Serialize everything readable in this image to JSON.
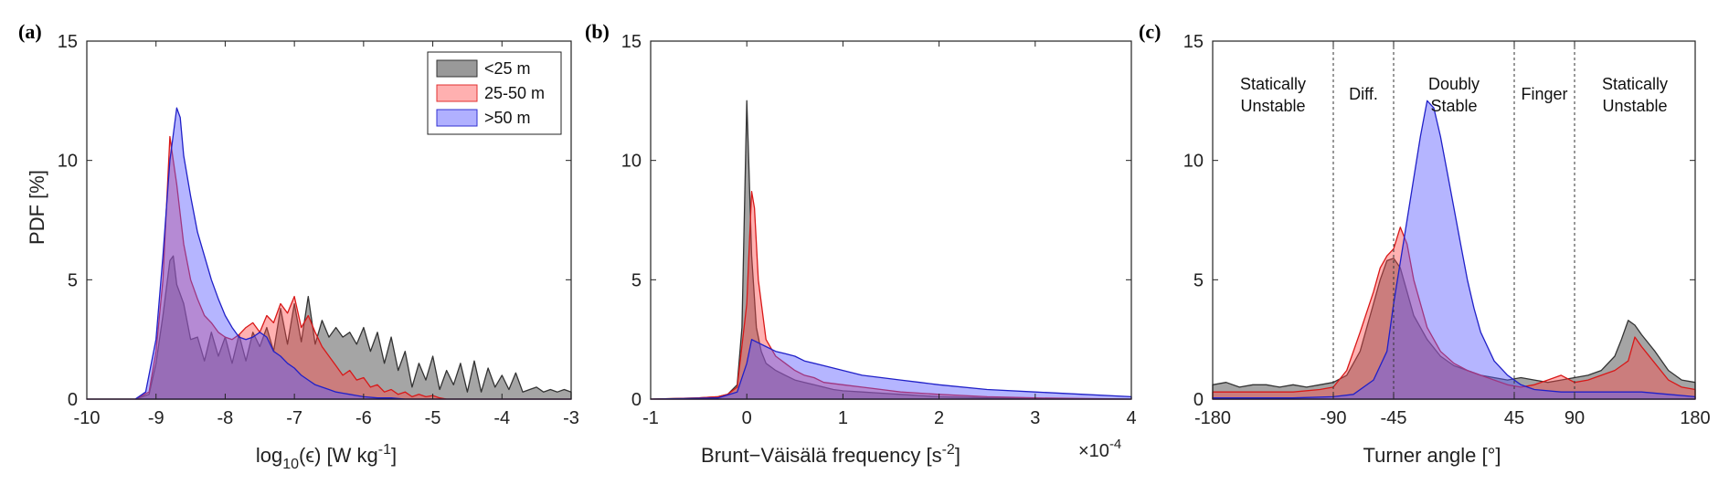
{
  "colors": {
    "lt25": "#555555",
    "25to50": "#ff5b5b",
    "gt50": "#5b5bff",
    "overlap": "#7b2d8b"
  },
  "panels": {
    "a": {
      "label": "(a)"
    },
    "b": {
      "label": "(b)",
      "xexp": "×10-4",
      "xexp_base": "×10",
      "xexp_power": "-4"
    },
    "c": {
      "label": "(c)",
      "regions": [
        {
          "line1": "Statically",
          "line2": "Unstable",
          "x": -135
        },
        {
          "line1": "Diff.",
          "line2": "",
          "x": -67.5
        },
        {
          "line1": "Doubly",
          "line2": "Stable",
          "x": 0
        },
        {
          "line1": "Finger",
          "line2": "",
          "x": 67.5
        },
        {
          "line1": "Statically",
          "line2": "Unstable",
          "x": 135
        }
      ]
    }
  },
  "legend": {
    "items": [
      "<25 m",
      "25-50 m",
      ">50 m"
    ]
  },
  "chart_data": [
    {
      "type": "area",
      "title": "",
      "ylabel": "PDF [%]",
      "xlabel": "log10(ε) [W kg-1]",
      "xlabel_parts": {
        "a": "log",
        "sub": "10",
        "b": "(ϵ) [W kg",
        "sup": "-1",
        "c": "]"
      },
      "xlim": [
        -10,
        -3
      ],
      "ylim": [
        0,
        15
      ],
      "xticks": [
        -10,
        -9,
        -8,
        -7,
        -6,
        -5,
        -4,
        -3
      ],
      "yticks": [
        0,
        5,
        10,
        15
      ],
      "legend_position": "top-right",
      "series": [
        {
          "name": "<25 m",
          "x": [
            -10,
            -9.3,
            -9.1,
            -9.0,
            -8.9,
            -8.8,
            -8.75,
            -8.7,
            -8.6,
            -8.5,
            -8.4,
            -8.3,
            -8.2,
            -8.1,
            -8.0,
            -7.9,
            -7.8,
            -7.7,
            -7.6,
            -7.5,
            -7.4,
            -7.3,
            -7.2,
            -7.1,
            -7.0,
            -6.9,
            -6.8,
            -6.7,
            -6.6,
            -6.5,
            -6.4,
            -6.3,
            -6.2,
            -6.1,
            -6.0,
            -5.9,
            -5.8,
            -5.7,
            -5.6,
            -5.5,
            -5.4,
            -5.3,
            -5.2,
            -5.1,
            -5.0,
            -4.9,
            -4.8,
            -4.7,
            -4.6,
            -4.5,
            -4.4,
            -4.3,
            -4.2,
            -4.1,
            -4.0,
            -3.9,
            -3.8,
            -3.7,
            -3.6,
            -3.5,
            -3.4,
            -3.3,
            -3.2,
            -3.1,
            -3.0
          ],
          "y": [
            0,
            0,
            0.2,
            1.5,
            3.5,
            5.8,
            6.0,
            4.8,
            4.0,
            2.5,
            2.6,
            1.6,
            2.8,
            1.8,
            2.6,
            1.5,
            2.7,
            1.6,
            2.8,
            2.2,
            3.0,
            2.0,
            3.8,
            2.3,
            4.0,
            2.4,
            4.3,
            2.3,
            3.3,
            2.6,
            3.0,
            2.6,
            2.8,
            2.3,
            3.0,
            2.0,
            2.8,
            1.5,
            2.6,
            1.2,
            2.0,
            0.5,
            1.5,
            0.8,
            1.8,
            0.4,
            1.2,
            0.6,
            1.5,
            0.3,
            1.6,
            0.3,
            1.3,
            0.5,
            1.0,
            0.4,
            1.1,
            0.3,
            0.4,
            0.5,
            0.3,
            0.4,
            0.3,
            0.4,
            0.3
          ]
        },
        {
          "name": "25-50 m",
          "x": [
            -10,
            -9.3,
            -9.1,
            -9.0,
            -8.9,
            -8.8,
            -8.75,
            -8.7,
            -8.6,
            -8.5,
            -8.4,
            -8.3,
            -8.2,
            -8.1,
            -8.0,
            -7.9,
            -7.8,
            -7.7,
            -7.6,
            -7.5,
            -7.4,
            -7.3,
            -7.2,
            -7.1,
            -7.0,
            -6.9,
            -6.8,
            -6.7,
            -6.6,
            -6.5,
            -6.4,
            -6.3,
            -6.2,
            -6.1,
            -6.0,
            -5.9,
            -5.8,
            -5.7,
            -5.6,
            -5.5,
            -5.4,
            -5.3,
            -5.2,
            -5.1,
            -5.0,
            -4.9,
            -4.8,
            -3.0
          ],
          "y": [
            0,
            0,
            0.3,
            2.0,
            5.0,
            11.0,
            10.0,
            9.0,
            6.5,
            5.0,
            4.2,
            3.5,
            3.2,
            2.8,
            2.6,
            2.5,
            2.7,
            3.0,
            3.2,
            2.8,
            3.5,
            3.2,
            4.0,
            3.6,
            4.3,
            3.0,
            3.5,
            2.8,
            2.2,
            1.8,
            1.4,
            1.0,
            1.2,
            0.8,
            0.9,
            0.5,
            0.6,
            0.3,
            0.4,
            0.2,
            0.3,
            0.1,
            0.2,
            0.1,
            0.15,
            0.05,
            0,
            0
          ]
        },
        {
          "name": ">50 m",
          "x": [
            -10,
            -9.3,
            -9.15,
            -9.0,
            -8.9,
            -8.8,
            -8.7,
            -8.65,
            -8.6,
            -8.5,
            -8.4,
            -8.3,
            -8.2,
            -8.1,
            -8.0,
            -7.9,
            -7.8,
            -7.7,
            -7.6,
            -7.5,
            -7.4,
            -7.3,
            -7.2,
            -7.1,
            -7.0,
            -6.9,
            -6.8,
            -6.7,
            -6.6,
            -6.5,
            -6.4,
            -6.3,
            -6.2,
            -6.1,
            -6.0,
            -5.8,
            -5.6,
            -5.4,
            -5.2,
            -5.0,
            -3.0
          ],
          "y": [
            0,
            0,
            0.3,
            2.5,
            6.0,
            10.0,
            12.2,
            11.8,
            10.2,
            8.5,
            7.0,
            6.0,
            5.0,
            4.2,
            3.5,
            3.0,
            2.6,
            2.5,
            2.6,
            2.8,
            2.6,
            2.0,
            1.8,
            1.5,
            1.3,
            1.0,
            0.8,
            0.6,
            0.5,
            0.4,
            0.3,
            0.25,
            0.2,
            0.15,
            0.1,
            0.05,
            0.05,
            0,
            0,
            0,
            0
          ]
        }
      ]
    },
    {
      "type": "area",
      "title": "",
      "ylabel": "",
      "xlabel": "Brunt−Väisälä frequency [s-2]",
      "xlabel_parts": {
        "a": "Brunt−Väisälä frequency [s",
        "sup": "-2",
        "c": "]"
      },
      "xlim": [
        -1,
        4
      ],
      "ylim": [
        0,
        15
      ],
      "xticks": [
        -1,
        0,
        1,
        2,
        3,
        4
      ],
      "yticks": [
        0,
        5,
        10,
        15
      ],
      "x_scale_label": "×10-4",
      "series": [
        {
          "name": "<25 m",
          "x": [
            -1,
            -0.5,
            -0.3,
            -0.2,
            -0.1,
            -0.05,
            0,
            0.02,
            0.05,
            0.1,
            0.15,
            0.2,
            0.3,
            0.4,
            0.5,
            0.6,
            0.7,
            0.8,
            0.9,
            1.0,
            1.2,
            1.4,
            1.6,
            1.8,
            2.0,
            2.5,
            3.0,
            4.0
          ],
          "y": [
            0,
            0.05,
            0.1,
            0.2,
            0.6,
            3.0,
            12.5,
            10.0,
            6.0,
            3.0,
            2.0,
            1.5,
            1.2,
            1.0,
            0.8,
            0.7,
            0.6,
            0.5,
            0.4,
            0.35,
            0.3,
            0.25,
            0.2,
            0.15,
            0.1,
            0.05,
            0.02,
            0
          ]
        },
        {
          "name": "25-50 m",
          "x": [
            -1,
            -0.5,
            -0.3,
            -0.2,
            -0.1,
            0,
            0.05,
            0.08,
            0.12,
            0.2,
            0.3,
            0.4,
            0.5,
            0.6,
            0.7,
            0.8,
            1.0,
            1.2,
            1.4,
            1.6,
            1.8,
            2.0,
            2.5,
            3.0,
            4.0
          ],
          "y": [
            0,
            0.05,
            0.1,
            0.2,
            0.5,
            4.0,
            8.7,
            8.0,
            5.0,
            2.5,
            1.8,
            1.5,
            1.2,
            1.0,
            0.9,
            0.7,
            0.6,
            0.5,
            0.4,
            0.3,
            0.25,
            0.2,
            0.1,
            0.05,
            0
          ]
        },
        {
          "name": ">50 m",
          "x": [
            -1,
            -0.3,
            -0.1,
            0,
            0.05,
            0.1,
            0.2,
            0.3,
            0.4,
            0.5,
            0.6,
            0.8,
            1.0,
            1.2,
            1.4,
            1.6,
            1.8,
            2.0,
            2.5,
            3.0,
            3.5,
            4.0
          ],
          "y": [
            0,
            0.05,
            0.3,
            1.5,
            2.5,
            2.4,
            2.2,
            2.0,
            1.9,
            1.8,
            1.6,
            1.4,
            1.2,
            1.0,
            0.9,
            0.8,
            0.7,
            0.6,
            0.4,
            0.3,
            0.2,
            0.1
          ]
        }
      ]
    },
    {
      "type": "area",
      "title": "",
      "ylabel": "",
      "xlabel": "Turner angle [°]",
      "xlim": [
        -180,
        180
      ],
      "ylim": [
        0,
        15
      ],
      "xticks": [
        -180,
        -90,
        -45,
        45,
        90,
        180
      ],
      "yticks": [
        0,
        5,
        10,
        15
      ],
      "dashed_lines_x": [
        -90,
        -45,
        45,
        90
      ],
      "series": [
        {
          "name": "<25 m",
          "x": [
            -180,
            -170,
            -160,
            -150,
            -140,
            -130,
            -120,
            -110,
            -100,
            -90,
            -80,
            -70,
            -60,
            -55,
            -50,
            -45,
            -40,
            -35,
            -30,
            -20,
            -10,
            0,
            10,
            20,
            30,
            40,
            50,
            60,
            70,
            80,
            90,
            100,
            110,
            120,
            125,
            130,
            135,
            140,
            150,
            160,
            170,
            180
          ],
          "y": [
            0.6,
            0.7,
            0.5,
            0.6,
            0.6,
            0.5,
            0.6,
            0.5,
            0.6,
            0.7,
            1.0,
            2.0,
            4.0,
            5.0,
            5.8,
            5.9,
            5.5,
            4.5,
            3.5,
            2.5,
            1.8,
            1.4,
            1.2,
            1.0,
            0.9,
            0.8,
            0.9,
            0.8,
            0.7,
            0.8,
            0.9,
            1.0,
            1.2,
            1.8,
            2.5,
            3.3,
            3.1,
            2.7,
            2.0,
            1.2,
            0.8,
            0.7
          ]
        },
        {
          "name": "25-50 m",
          "x": [
            -180,
            -150,
            -120,
            -100,
            -90,
            -80,
            -70,
            -60,
            -55,
            -50,
            -45,
            -40,
            -35,
            -30,
            -20,
            -10,
            0,
            10,
            20,
            30,
            40,
            50,
            60,
            70,
            80,
            90,
            100,
            110,
            120,
            130,
            135,
            140,
            150,
            160,
            170,
            180
          ],
          "y": [
            0.3,
            0.3,
            0.3,
            0.4,
            0.5,
            1.2,
            2.8,
            4.5,
            5.5,
            6.0,
            6.3,
            7.2,
            6.5,
            5.0,
            3.0,
            2.0,
            1.5,
            1.2,
            1.0,
            0.8,
            0.6,
            0.5,
            0.6,
            0.8,
            1.0,
            0.7,
            0.8,
            1.0,
            1.2,
            1.6,
            2.6,
            2.2,
            1.5,
            0.8,
            0.5,
            0.4
          ]
        },
        {
          "name": ">50 m",
          "x": [
            -180,
            -120,
            -90,
            -75,
            -60,
            -50,
            -45,
            -35,
            -25,
            -20,
            -15,
            -10,
            -5,
            0,
            5,
            10,
            15,
            20,
            30,
            40,
            50,
            60,
            80,
            100,
            120,
            140,
            160,
            180
          ],
          "y": [
            0.05,
            0.05,
            0.1,
            0.2,
            0.8,
            2.0,
            4.0,
            7.5,
            11.0,
            12.5,
            12.2,
            11.0,
            9.5,
            8.0,
            6.5,
            5.0,
            3.8,
            2.8,
            1.6,
            1.0,
            0.6,
            0.4,
            0.3,
            0.3,
            0.3,
            0.3,
            0.2,
            0.1
          ]
        }
      ]
    }
  ]
}
